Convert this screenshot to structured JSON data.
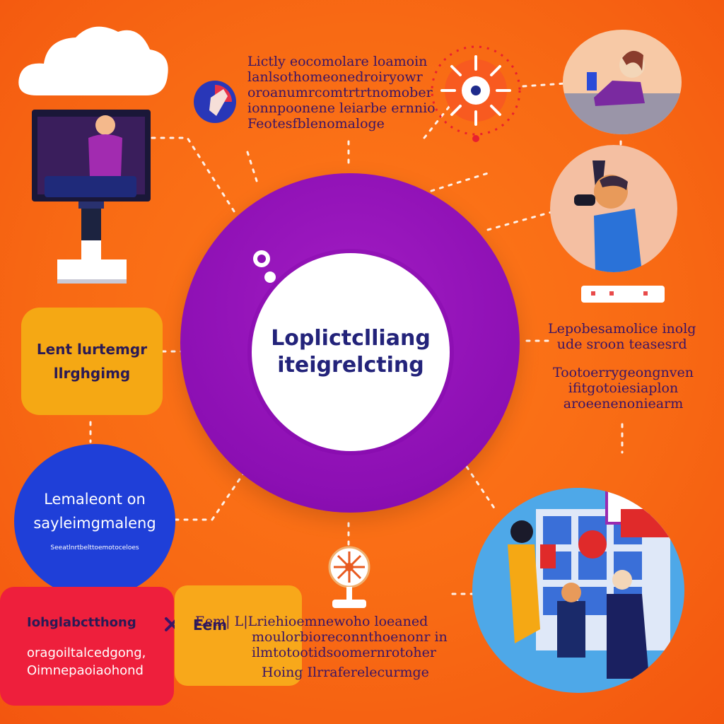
{
  "hub": {
    "title_line1": "Loplictclliang",
    "title_line2": "iteigrelcting"
  },
  "top_text": {
    "lines": [
      "Lictly eocomolare loamoin",
      "lanlsothomeonedroiryowr",
      "oroanumrcomtrtrtnomober",
      "ionnpoonene leiarbe ernnio",
      "Feotesfblenomaloge"
    ]
  },
  "right_text_1": {
    "lines": [
      "Lepobesamolice inolg",
      "ude sroon teasesrd"
    ]
  },
  "right_text_2": {
    "lines": [
      "Tootoerrygeongnven",
      "ifitgotoiesiaplon",
      "aroeenenoniearm"
    ]
  },
  "bottom_text": {
    "lines": [
      "Eem| L|Lriehioemnewoho loeaned",
      "moulorbioreconnthoenonr in",
      "ilmtotootidsoomernrotoher",
      "Hoing Ilrraferelecurmge"
    ]
  },
  "card_orange": {
    "line1": "Lent lurtemgr",
    "line2": "llrghgimg"
  },
  "card_blue": {
    "line1": "Lemaleont on",
    "line2": "sayleimgmaleng",
    "line3": "Seeatlnrtbelttoemotoceloes"
  },
  "card_red": {
    "line1": "Iohglabctthong",
    "line2": "oragoiltalcedgong,",
    "line3": "Oimnepaoiaohond"
  },
  "card_yellow": {
    "label": "Eem"
  },
  "colors": {
    "background": "#f86a14",
    "hub_purple": "#8c0fb3",
    "card_orange": "#f5a814",
    "card_blue": "#1f3fd8",
    "card_red": "#ee1f3c",
    "card_yellow": "#f8a81a",
    "text_dark": "#3a1466"
  },
  "icons": [
    "cloud-icon",
    "monitor-icon",
    "gear-badge-icon",
    "fan-icon",
    "pill-badge-icon",
    "close-x-icon"
  ]
}
